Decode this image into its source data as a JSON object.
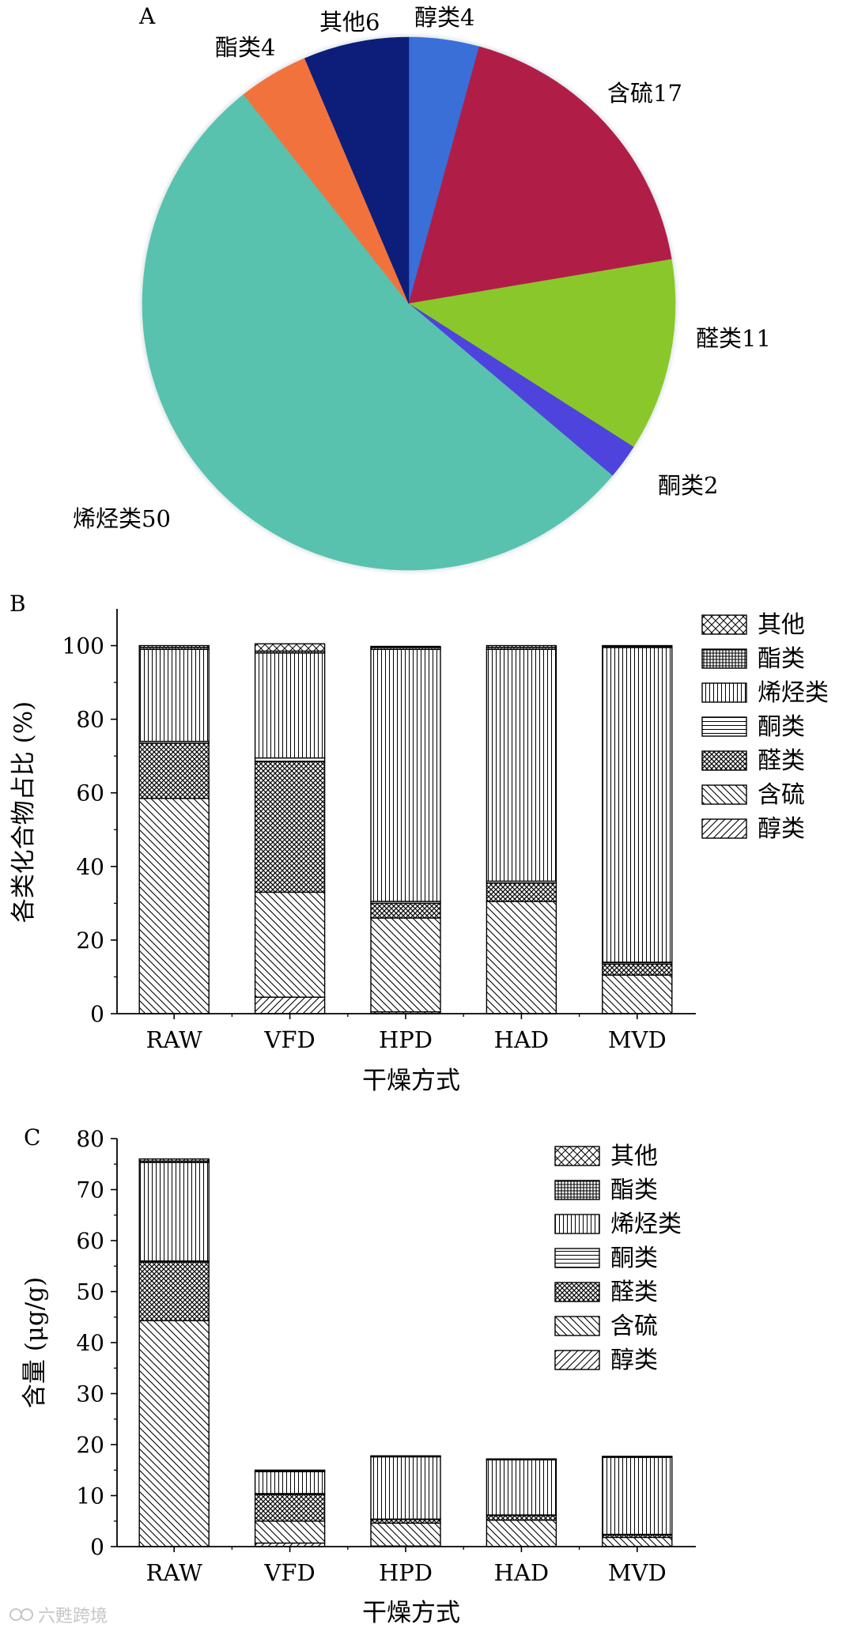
{
  "panels": {
    "a": {
      "label": "A"
    },
    "b": {
      "label": "B"
    },
    "c": {
      "label": "C"
    }
  },
  "watermark": {
    "text": "六甦跨境"
  },
  "chart_data": [
    {
      "id": "A",
      "type": "pie",
      "slices": [
        {
          "name": "醇类",
          "value": 4,
          "label": "醇类4",
          "color": "#3a6fd8"
        },
        {
          "name": "含硫",
          "value": 17,
          "label": "含硫17",
          "color": "#b01e48"
        },
        {
          "name": "醛类",
          "value": 11,
          "label": "醛类11",
          "color": "#8ac72a"
        },
        {
          "name": "酮类",
          "value": 2,
          "label": "酮类2",
          "color": "#4e44dd"
        },
        {
          "name": "烯烃类",
          "value": 50,
          "label": "烯烃类50",
          "color": "#58c2ae"
        },
        {
          "name": "酯类",
          "value": 4,
          "label": "酯类4",
          "color": "#f2723e"
        },
        {
          "name": "其他",
          "value": 6,
          "label": "其他6",
          "color": "#0d1e7a"
        }
      ]
    },
    {
      "id": "B",
      "type": "bar",
      "stacked": true,
      "categories": [
        "RAW",
        "VFD",
        "HPD",
        "HAD",
        "MVD"
      ],
      "xlabel": "干燥方式",
      "ylabel": "各类化合物占比 (%)",
      "ylim": [
        0,
        110
      ],
      "yticks": [
        0,
        20,
        40,
        60,
        80,
        100
      ],
      "legend_position": "top-right",
      "series": [
        {
          "name": "醇类",
          "pattern": "fdiag",
          "values": [
            0,
            4.5,
            0.5,
            0,
            0
          ]
        },
        {
          "name": "含硫",
          "pattern": "bdiag",
          "values": [
            58.5,
            28.5,
            25.5,
            30.5,
            10.5
          ]
        },
        {
          "name": "醛类",
          "pattern": "cross",
          "values": [
            15,
            35.5,
            4,
            5,
            3
          ]
        },
        {
          "name": "酮类",
          "pattern": "hlines",
          "values": [
            0.5,
            1,
            0.5,
            0.5,
            0.5
          ]
        },
        {
          "name": "烯烃类",
          "pattern": "vlines",
          "values": [
            25,
            28.5,
            68.5,
            63,
            85.5
          ]
        },
        {
          "name": "酯类",
          "pattern": "grid",
          "values": [
            0.5,
            0.5,
            0.5,
            0.5,
            0.3
          ]
        },
        {
          "name": "其他",
          "pattern": "xhatch",
          "values": [
            0.5,
            2,
            0.3,
            0.5,
            0.2
          ]
        }
      ]
    },
    {
      "id": "C",
      "type": "bar",
      "stacked": true,
      "categories": [
        "RAW",
        "VFD",
        "HPD",
        "HAD",
        "MVD"
      ],
      "xlabel": "干燥方式",
      "ylabel": "含量 (μg/g)",
      "ylim": [
        0,
        80
      ],
      "yticks": [
        0,
        10,
        20,
        30,
        40,
        50,
        60,
        70,
        80
      ],
      "legend_position": "top-right",
      "series": [
        {
          "name": "醇类",
          "pattern": "fdiag",
          "values": [
            0,
            0.7,
            0.1,
            0,
            0
          ]
        },
        {
          "name": "含硫",
          "pattern": "bdiag",
          "values": [
            44.3,
            4.3,
            4.5,
            5.2,
            1.8
          ]
        },
        {
          "name": "醛类",
          "pattern": "cross",
          "values": [
            11.5,
            5.2,
            0.7,
            0.9,
            0.5
          ]
        },
        {
          "name": "酮类",
          "pattern": "hlines",
          "values": [
            0.2,
            0.2,
            0.1,
            0.1,
            0.1
          ]
        },
        {
          "name": "烯烃类",
          "pattern": "vlines",
          "values": [
            19.3,
            4.3,
            12.2,
            10.8,
            15.1
          ]
        },
        {
          "name": "酯类",
          "pattern": "grid",
          "values": [
            0.3,
            0.1,
            0.1,
            0.1,
            0.1
          ]
        },
        {
          "name": "其他",
          "pattern": "xhatch",
          "values": [
            0.4,
            0.2,
            0.1,
            0.1,
            0.1
          ]
        }
      ]
    }
  ]
}
